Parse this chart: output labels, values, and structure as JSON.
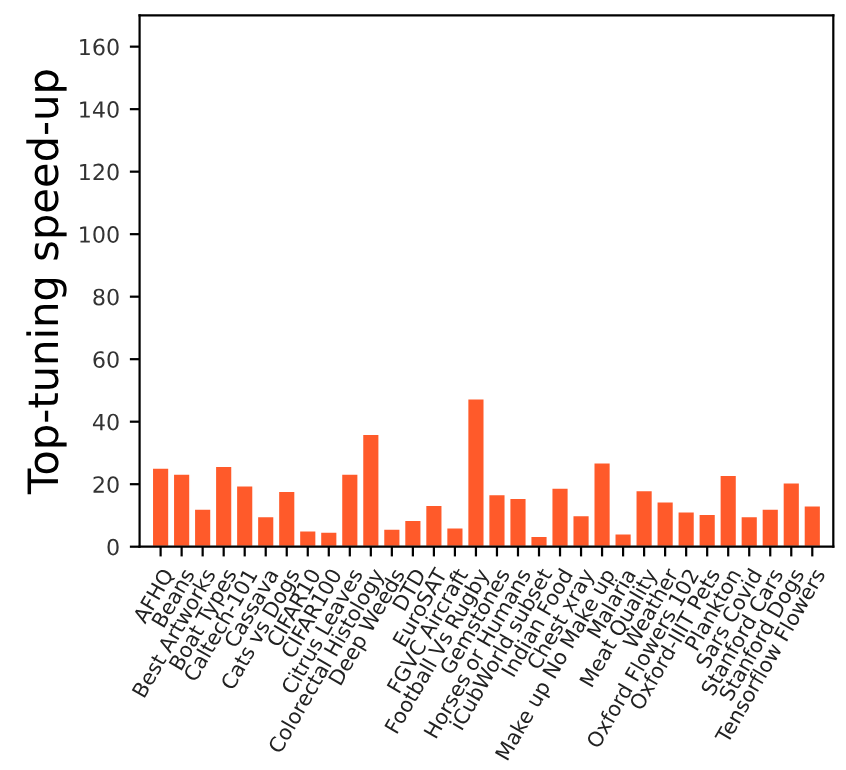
{
  "chart_data": {
    "type": "bar",
    "ylabel": "Top-tuning speed-up",
    "categories": [
      "AFHQ",
      "Beans",
      "Best Artworks",
      "Boat Types",
      "Caltech-101",
      "Cassava",
      "Cats vs Dogs",
      "CIFAR10",
      "CIFAR100",
      "Citrus Leaves",
      "Colorectal Histology",
      "Deep Weeds",
      "DTD",
      "EuroSAT",
      "FGVC Aircraft",
      "Football Vs Rugby",
      "Gemstones",
      "Horses or Humans",
      "iCubWorld subset",
      "Indian Food",
      "Chest xray",
      "Make up No Make up",
      "Malaria",
      "Meat Quality",
      "Weather",
      "Oxford Flowers 102",
      "Oxford-IIIT Pets",
      "Plankton",
      "Sars Covid",
      "Stanford Cars",
      "Stanford Dogs",
      "Tensorflow Flowers"
    ],
    "values": [
      25.2,
      23.3,
      12.1,
      25.8,
      19.5,
      9.7,
      17.8,
      5.1,
      4.7,
      23.3,
      36,
      5.7,
      8.5,
      13.3,
      6.1,
      47.4,
      16.7,
      15.5,
      3.4,
      18.8,
      10,
      26.9,
      4.2,
      18,
      14.4,
      11.2,
      10.4,
      22.9,
      9.7,
      12.1,
      20.5,
      13.1
    ],
    "color": "#ff5a2a",
    "ylim": [
      0,
      170
    ],
    "yticks": [
      0,
      20,
      40,
      60,
      80,
      100,
      120,
      140,
      160
    ],
    "grid": false
  }
}
